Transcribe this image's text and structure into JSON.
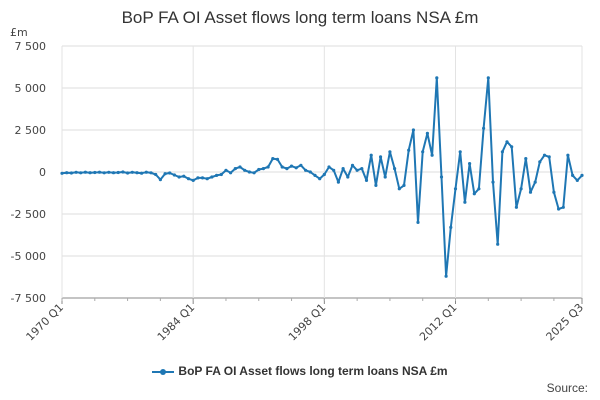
{
  "chart_data": {
    "type": "line",
    "title": "BoP FA OI Asset flows long term loans NSA £m",
    "ylabel": "£m",
    "ylim": [
      -7500,
      7500
    ],
    "yticks": [
      7500,
      5000,
      2500,
      0,
      -2500,
      -5000,
      -7500
    ],
    "yticklabels": [
      "7 500",
      "5 000",
      "2 500",
      "0",
      "-2 500",
      "-5 000",
      "-7 500"
    ],
    "xlim": [
      1970.0,
      2025.5
    ],
    "xticks": [
      {
        "x": 1970.0,
        "label": "1970 Q1"
      },
      {
        "x": 1984.0,
        "label": "1984 Q1"
      },
      {
        "x": 1998.0,
        "label": "1998 Q1"
      },
      {
        "x": 2012.0,
        "label": "2012 Q1"
      },
      {
        "x": 2025.5,
        "label": "2025 Q3"
      }
    ],
    "grid": true,
    "legend_position": "bottom",
    "series": [
      {
        "name": "BoP FA OI Asset flows long term loans NSA £m",
        "color": "#1f77b4",
        "points": [
          [
            1970.0,
            -80
          ],
          [
            1970.5,
            -40
          ],
          [
            1971.0,
            -60
          ],
          [
            1971.5,
            -20
          ],
          [
            1972.0,
            -50
          ],
          [
            1972.5,
            -10
          ],
          [
            1973.0,
            -40
          ],
          [
            1973.5,
            -30
          ],
          [
            1974.0,
            -10
          ],
          [
            1974.5,
            -50
          ],
          [
            1975.0,
            -20
          ],
          [
            1975.5,
            -40
          ],
          [
            1976.0,
            -30
          ],
          [
            1976.5,
            0
          ],
          [
            1977.0,
            -60
          ],
          [
            1977.5,
            -20
          ],
          [
            1978.0,
            -40
          ],
          [
            1978.5,
            -70
          ],
          [
            1979.0,
            -10
          ],
          [
            1979.5,
            -50
          ],
          [
            1980.0,
            -150
          ],
          [
            1980.5,
            -450
          ],
          [
            1981.0,
            -100
          ],
          [
            1981.5,
            -60
          ],
          [
            1982.0,
            -180
          ],
          [
            1982.5,
            -300
          ],
          [
            1983.0,
            -250
          ],
          [
            1983.5,
            -400
          ],
          [
            1984.0,
            -500
          ],
          [
            1984.5,
            -350
          ],
          [
            1985.0,
            -350
          ],
          [
            1985.5,
            -400
          ],
          [
            1986.0,
            -300
          ],
          [
            1986.5,
            -200
          ],
          [
            1987.0,
            -150
          ],
          [
            1987.5,
            100
          ],
          [
            1988.0,
            -50
          ],
          [
            1988.5,
            200
          ],
          [
            1989.0,
            300
          ],
          [
            1989.5,
            100
          ],
          [
            1990.0,
            0
          ],
          [
            1990.5,
            -50
          ],
          [
            1991.0,
            150
          ],
          [
            1991.5,
            200
          ],
          [
            1992.0,
            300
          ],
          [
            1992.5,
            800
          ],
          [
            1993.0,
            750
          ],
          [
            1993.5,
            300
          ],
          [
            1994.0,
            200
          ],
          [
            1994.5,
            350
          ],
          [
            1995.0,
            250
          ],
          [
            1995.5,
            400
          ],
          [
            1996.0,
            100
          ],
          [
            1996.5,
            0
          ],
          [
            1997.0,
            -200
          ],
          [
            1997.5,
            -400
          ],
          [
            1998.0,
            -150
          ],
          [
            1998.5,
            300
          ],
          [
            1999.0,
            100
          ],
          [
            1999.5,
            -600
          ],
          [
            2000.0,
            200
          ],
          [
            2000.5,
            -300
          ],
          [
            2001.0,
            400
          ],
          [
            2001.5,
            100
          ],
          [
            2002.0,
            200
          ],
          [
            2002.5,
            -500
          ],
          [
            2003.0,
            1000
          ],
          [
            2003.5,
            -800
          ],
          [
            2004.0,
            900
          ],
          [
            2004.5,
            -300
          ],
          [
            2005.0,
            1200
          ],
          [
            2005.5,
            200
          ],
          [
            2006.0,
            -1000
          ],
          [
            2006.5,
            -800
          ],
          [
            2007.0,
            1300
          ],
          [
            2007.5,
            2500
          ],
          [
            2008.0,
            -3000
          ],
          [
            2008.5,
            1200
          ],
          [
            2009.0,
            2300
          ],
          [
            2009.5,
            1000
          ],
          [
            2010.0,
            5600
          ],
          [
            2010.5,
            -300
          ],
          [
            2011.0,
            -6200
          ],
          [
            2011.5,
            -3300
          ],
          [
            2012.0,
            -1000
          ],
          [
            2012.5,
            1200
          ],
          [
            2013.0,
            -1800
          ],
          [
            2013.5,
            500
          ],
          [
            2014.0,
            -1300
          ],
          [
            2014.5,
            -1000
          ],
          [
            2015.0,
            2600
          ],
          [
            2015.5,
            5600
          ],
          [
            2016.0,
            -600
          ],
          [
            2016.5,
            -4300
          ],
          [
            2017.0,
            1200
          ],
          [
            2017.5,
            1800
          ],
          [
            2018.0,
            1500
          ],
          [
            2018.5,
            -2100
          ],
          [
            2019.0,
            -1000
          ],
          [
            2019.5,
            800
          ],
          [
            2020.0,
            -1200
          ],
          [
            2020.5,
            -600
          ],
          [
            2021.0,
            600
          ],
          [
            2021.5,
            1000
          ],
          [
            2022.0,
            900
          ],
          [
            2022.5,
            -1200
          ],
          [
            2023.0,
            -2200
          ],
          [
            2023.5,
            -2100
          ],
          [
            2024.0,
            1000
          ],
          [
            2024.5,
            -200
          ],
          [
            2025.0,
            -500
          ],
          [
            2025.5,
            -200
          ]
        ]
      }
    ],
    "source_label": "Source:"
  }
}
